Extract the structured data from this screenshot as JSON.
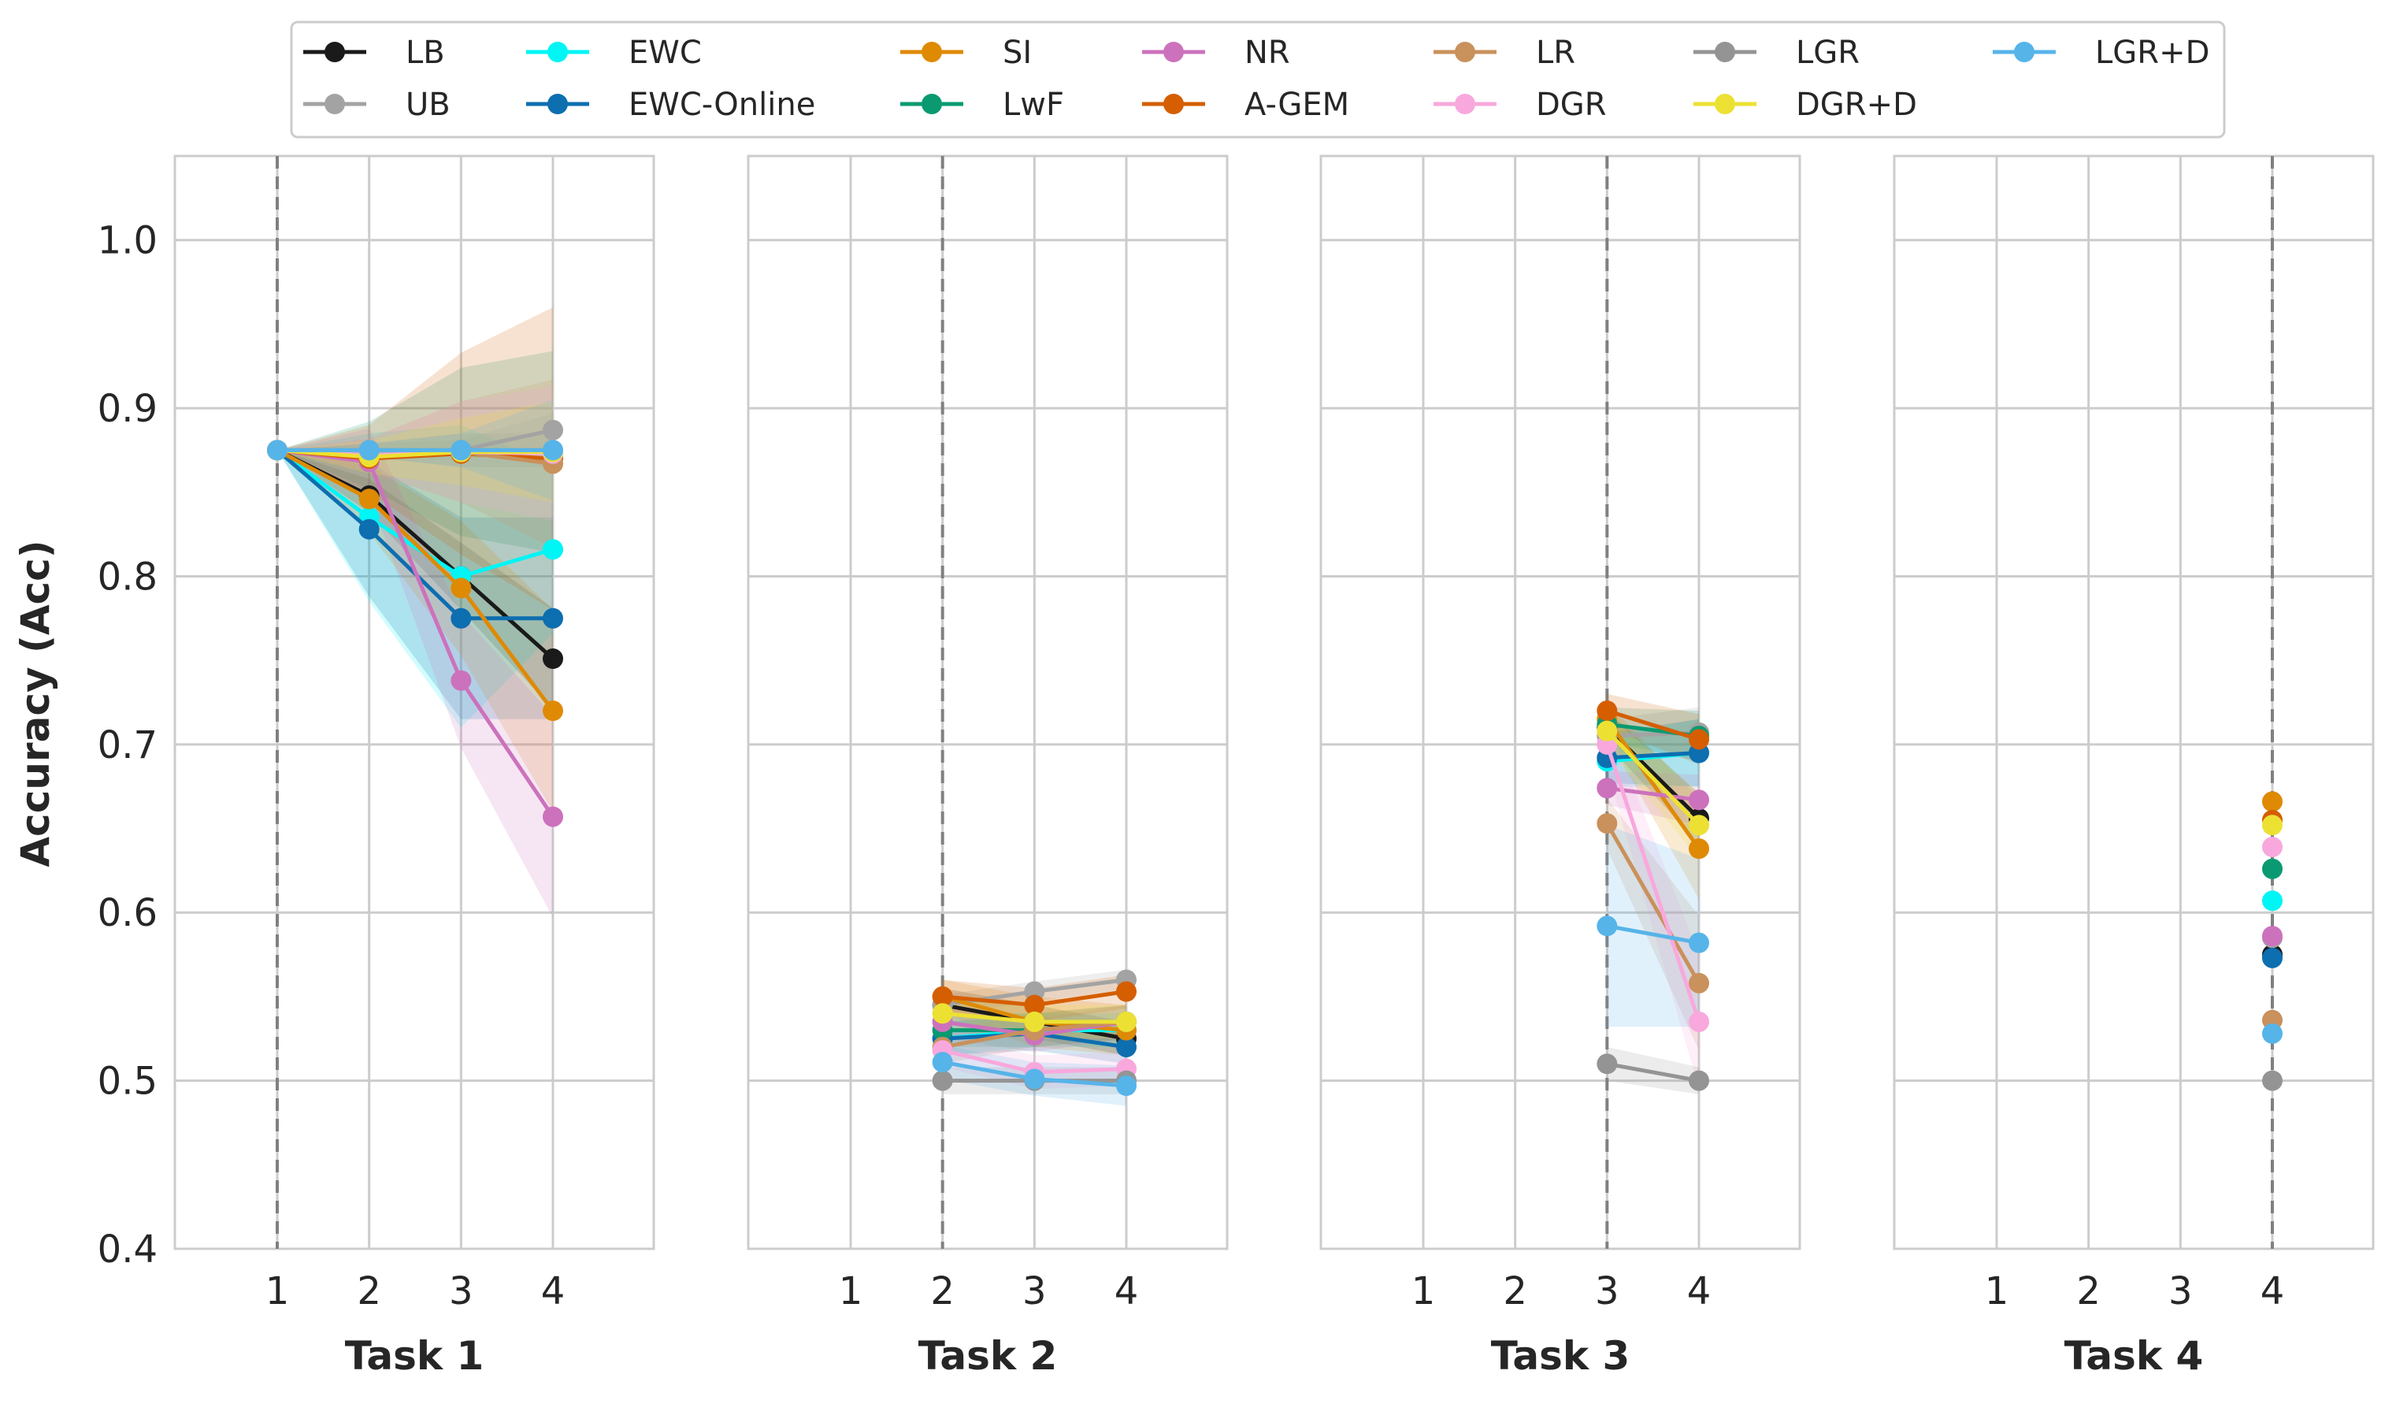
{
  "chart_data": {
    "type": "line",
    "ylabel": "Accuracy (Acc)",
    "ylim": [
      0.4,
      1.05
    ],
    "yticks": [
      "0.4",
      "0.5",
      "0.6",
      "0.7",
      "0.8",
      "0.9",
      "1.0"
    ],
    "xticks": [
      "1",
      "2",
      "3",
      "4"
    ],
    "grid": true,
    "legend_placement": "top-center",
    "colors": {
      "LB": "#1a1a1a",
      "UB": "#a3a3a3",
      "EWC": "#00f5f5",
      "EWC-Online": "#0d6eb0",
      "SI": "#de8a05",
      "LwF": "#0a9a72",
      "NR": "#cc72bc",
      "A-GEM": "#d55e00",
      "LR": "#c9915c",
      "DGR": "#f8a8dd",
      "LGR": "#949494",
      "DGR+D": "#ece133",
      "LGR+D": "#56b4e9"
    },
    "legend": [
      "LB",
      "UB",
      "EWC",
      "EWC-Online",
      "SI",
      "LwF",
      "NR",
      "A-GEM",
      "LR",
      "DGR",
      "LGR",
      "DGR+D",
      "LGR+D"
    ],
    "panels": [
      {
        "xlabel": "Task 1",
        "task_index": 1,
        "x": [
          1,
          2,
          3,
          4
        ],
        "series": [
          {
            "name": "LB",
            "values": [
              0.875,
              0.848,
              0.8,
              0.751
            ],
            "band": [
              0.0,
              0.01,
              0.02,
              0.03
            ]
          },
          {
            "name": "UB",
            "values": [
              0.875,
              0.875,
              0.875,
              0.887
            ],
            "band": [
              0.0,
              0.004,
              0.006,
              0.01
            ]
          },
          {
            "name": "EWC",
            "values": [
              0.875,
              0.835,
              0.8,
              0.816
            ],
            "band": [
              0.0,
              0.05,
              0.09,
              0.05
            ]
          },
          {
            "name": "EWC-Online",
            "values": [
              0.875,
              0.828,
              0.775,
              0.775
            ],
            "band": [
              0.0,
              0.04,
              0.06,
              0.06
            ]
          },
          {
            "name": "SI",
            "values": [
              0.875,
              0.846,
              0.793,
              0.72
            ],
            "band": [
              0.0,
              0.02,
              0.04,
              0.06
            ]
          },
          {
            "name": "LwF",
            "values": [
              0.875,
              0.872,
              0.874,
              0.874
            ],
            "band": [
              0.0,
              0.02,
              0.05,
              0.06
            ]
          },
          {
            "name": "NR",
            "values": [
              0.875,
              0.868,
              0.738,
              0.657
            ],
            "band": [
              0.0,
              0.02,
              0.04,
              0.06
            ]
          },
          {
            "name": "A-GEM",
            "values": [
              0.875,
              0.87,
              0.873,
              0.87
            ],
            "band": [
              0.0,
              0.02,
              0.06,
              0.09
            ]
          },
          {
            "name": "LR",
            "values": [
              0.875,
              0.872,
              0.874,
              0.867
            ],
            "band": [
              0.0,
              0.01,
              0.03,
              0.05
            ]
          },
          {
            "name": "DGR",
            "values": [
              0.875,
              0.872,
              0.874,
              0.873
            ],
            "band": [
              0.0,
              0.01,
              0.03,
              0.04
            ]
          },
          {
            "name": "LGR",
            "values": [
              0.875,
              0.875,
              0.875,
              0.875
            ],
            "band": [
              0.0,
              0.004,
              0.01,
              0.01
            ]
          },
          {
            "name": "DGR+D",
            "values": [
              0.875,
              0.871,
              0.874,
              0.874
            ],
            "band": [
              0.0,
              0.01,
              0.02,
              0.03
            ]
          },
          {
            "name": "LGR+D",
            "values": [
              0.875,
              0.875,
              0.875,
              0.875
            ],
            "band": [
              0.0,
              0.004,
              0.01,
              0.03
            ]
          }
        ]
      },
      {
        "xlabel": "Task 2",
        "task_index": 2,
        "x": [
          2,
          3,
          4
        ],
        "series": [
          {
            "name": "LB",
            "values": [
              0.545,
              0.535,
              0.525
            ],
            "band": [
              0.01,
              0.01,
              0.01
            ]
          },
          {
            "name": "UB",
            "values": [
              0.545,
              0.553,
              0.56
            ],
            "band": [
              0.006,
              0.006,
              0.006
            ]
          },
          {
            "name": "EWC",
            "values": [
              0.525,
              0.53,
              0.53
            ],
            "band": [
              0.01,
              0.01,
              0.01
            ]
          },
          {
            "name": "EWC-Online",
            "values": [
              0.525,
              0.528,
              0.52
            ],
            "band": [
              0.01,
              0.01,
              0.01
            ]
          },
          {
            "name": "SI",
            "values": [
              0.55,
              0.535,
              0.53
            ],
            "band": [
              0.01,
              0.015,
              0.015
            ]
          },
          {
            "name": "LwF",
            "values": [
              0.53,
              0.53,
              0.535
            ],
            "band": [
              0.01,
              0.01,
              0.01
            ]
          },
          {
            "name": "NR",
            "values": [
              0.535,
              0.527,
              0.535
            ],
            "band": [
              0.01,
              0.01,
              0.01
            ]
          },
          {
            "name": "A-GEM",
            "values": [
              0.55,
              0.545,
              0.553
            ],
            "band": [
              0.01,
              0.01,
              0.01
            ]
          },
          {
            "name": "LR",
            "values": [
              0.52,
              0.53,
              0.535
            ],
            "band": [
              0.01,
              0.01,
              0.01
            ]
          },
          {
            "name": "DGR",
            "values": [
              0.518,
              0.505,
              0.507
            ],
            "band": [
              0.01,
              0.01,
              0.01
            ]
          },
          {
            "name": "LGR",
            "values": [
              0.5,
              0.5,
              0.5
            ],
            "band": [
              0.008,
              0.008,
              0.008
            ]
          },
          {
            "name": "DGR+D",
            "values": [
              0.54,
              0.535,
              0.535
            ],
            "band": [
              0.01,
              0.01,
              0.01
            ]
          },
          {
            "name": "LGR+D",
            "values": [
              0.511,
              0.501,
              0.497
            ],
            "band": [
              0.01,
              0.01,
              0.012
            ]
          }
        ]
      },
      {
        "xlabel": "Task 3",
        "task_index": 3,
        "x": [
          3,
          4
        ],
        "series": [
          {
            "name": "LB",
            "values": [
              0.71,
              0.656
            ],
            "band": [
              0.01,
              0.015
            ]
          },
          {
            "name": "UB",
            "values": [
              0.705,
              0.707
            ],
            "band": [
              0.01,
              0.015
            ]
          },
          {
            "name": "EWC",
            "values": [
              0.69,
              0.695
            ],
            "band": [
              0.015,
              0.02
            ]
          },
          {
            "name": "EWC-Online",
            "values": [
              0.692,
              0.695
            ],
            "band": [
              0.015,
              0.02
            ]
          },
          {
            "name": "SI",
            "values": [
              0.715,
              0.638
            ],
            "band": [
              0.01,
              0.03
            ]
          },
          {
            "name": "LwF",
            "values": [
              0.712,
              0.705
            ],
            "band": [
              0.01,
              0.015
            ]
          },
          {
            "name": "NR",
            "values": [
              0.674,
              0.667
            ],
            "band": [
              0.01,
              0.015
            ]
          },
          {
            "name": "A-GEM",
            "values": [
              0.72,
              0.703
            ],
            "band": [
              0.01,
              0.015
            ]
          },
          {
            "name": "LR",
            "values": [
              0.653,
              0.558
            ],
            "band": [
              0.015,
              0.04
            ]
          },
          {
            "name": "DGR",
            "values": [
              0.7,
              0.535
            ],
            "band": [
              0.015,
              0.04
            ]
          },
          {
            "name": "LGR",
            "values": [
              0.51,
              0.5
            ],
            "band": [
              0.01,
              0.008
            ]
          },
          {
            "name": "DGR+D",
            "values": [
              0.708,
              0.652
            ],
            "band": [
              0.01,
              0.02
            ]
          },
          {
            "name": "LGR+D",
            "values": [
              0.592,
              0.582
            ],
            "band": [
              0.06,
              0.05
            ]
          }
        ]
      },
      {
        "xlabel": "Task 4",
        "task_index": 4,
        "x": [
          4
        ],
        "series": [
          {
            "name": "LB",
            "values": [
              0.575
            ],
            "band": [
              0.0
            ]
          },
          {
            "name": "UB",
            "values": [
              0.585
            ],
            "band": [
              0.0
            ]
          },
          {
            "name": "EWC",
            "values": [
              0.607
            ],
            "band": [
              0.0
            ]
          },
          {
            "name": "EWC-Online",
            "values": [
              0.573
            ],
            "band": [
              0.0
            ]
          },
          {
            "name": "SI",
            "values": [
              0.666
            ],
            "band": [
              0.0
            ]
          },
          {
            "name": "LwF",
            "values": [
              0.626
            ],
            "band": [
              0.0
            ]
          },
          {
            "name": "NR",
            "values": [
              0.586
            ],
            "band": [
              0.0
            ]
          },
          {
            "name": "A-GEM",
            "values": [
              0.655
            ],
            "band": [
              0.0
            ]
          },
          {
            "name": "LR",
            "values": [
              0.536
            ],
            "band": [
              0.0
            ]
          },
          {
            "name": "DGR",
            "values": [
              0.639
            ],
            "band": [
              0.0
            ]
          },
          {
            "name": "LGR",
            "values": [
              0.5
            ],
            "band": [
              0.0
            ]
          },
          {
            "name": "DGR+D",
            "values": [
              0.652
            ],
            "band": [
              0.0
            ]
          },
          {
            "name": "LGR+D",
            "values": [
              0.528
            ],
            "band": [
              0.0
            ]
          }
        ]
      }
    ]
  }
}
